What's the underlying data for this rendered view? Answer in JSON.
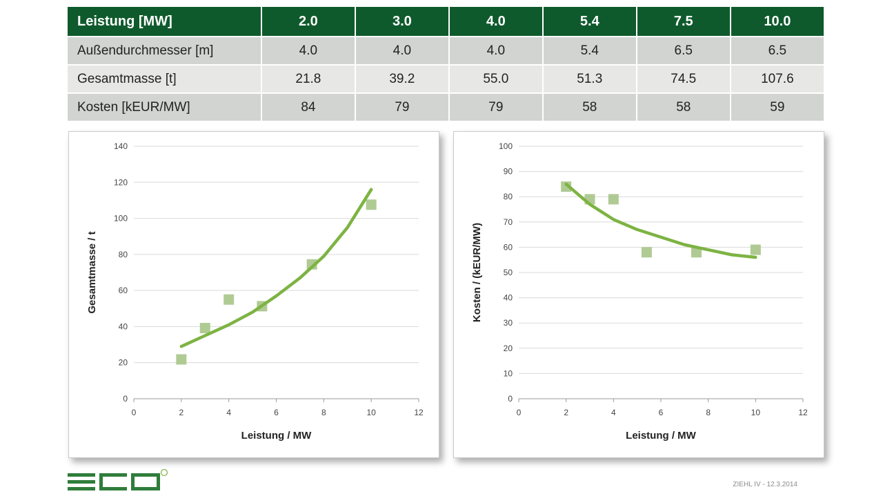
{
  "table": {
    "header_label": "Leistung [MW]",
    "columns": [
      "2.0",
      "3.0",
      "4.0",
      "5.4",
      "7.5",
      "10.0"
    ],
    "rows": [
      {
        "label": "Außendurchmesser [m]",
        "values": [
          "4.0",
          "4.0",
          "4.0",
          "5.4",
          "6.5",
          "6.5"
        ]
      },
      {
        "label": "Gesamtmasse [t]",
        "values": [
          "21.8",
          "39.2",
          "55.0",
          "51.3",
          "74.5",
          "107.6"
        ]
      },
      {
        "label": "Kosten [kEUR/MW]",
        "values": [
          "84",
          "79",
          "79",
          "58",
          "58",
          "59"
        ]
      }
    ]
  },
  "chart_data": [
    {
      "type": "scatter",
      "xlabel": "Leistung / MW",
      "ylabel": "Gesamtmasse / t",
      "xlim": [
        0,
        12
      ],
      "ylim": [
        0,
        140
      ],
      "xticks": [
        0,
        2,
        4,
        6,
        8,
        10,
        12
      ],
      "yticks": [
        0,
        20,
        40,
        60,
        80,
        100,
        120,
        140
      ],
      "grid": "horizontal",
      "points": {
        "x": [
          2.0,
          3.0,
          4.0,
          5.4,
          7.5,
          10.0
        ],
        "y": [
          21.8,
          39.2,
          55.0,
          51.3,
          74.5,
          107.6
        ]
      },
      "trendline": {
        "x": [
          2,
          3,
          4,
          5,
          6,
          7,
          8,
          9,
          10
        ],
        "y": [
          29,
          35,
          41,
          48,
          57,
          67,
          79,
          95,
          116
        ]
      },
      "marker_color": "#a9c58b",
      "trend_color": "#7db343"
    },
    {
      "type": "scatter",
      "xlabel": "Leistung / MW",
      "ylabel": "Kosten / (kEUR/MW)",
      "xlim": [
        0,
        12
      ],
      "ylim": [
        0,
        100
      ],
      "xticks": [
        0,
        2,
        4,
        6,
        8,
        10,
        12
      ],
      "yticks": [
        0,
        10,
        20,
        30,
        40,
        50,
        60,
        70,
        80,
        90,
        100
      ],
      "grid": "horizontal",
      "points": {
        "x": [
          2.0,
          3.0,
          4.0,
          5.4,
          7.5,
          10.0
        ],
        "y": [
          84,
          79,
          79,
          58,
          58,
          59
        ]
      },
      "trendline": {
        "x": [
          2,
          3,
          4,
          5,
          6,
          7,
          8,
          9,
          10
        ],
        "y": [
          85,
          77,
          71,
          67,
          64,
          61,
          59,
          57,
          56
        ]
      },
      "marker_color": "#a9c58b",
      "trend_color": "#7db343"
    }
  ],
  "brand": {
    "accent": "#0f5a2c",
    "logo_green": "#2f7d3a"
  },
  "footer": {
    "note": "ZIEHL IV - 12.3.2014"
  }
}
